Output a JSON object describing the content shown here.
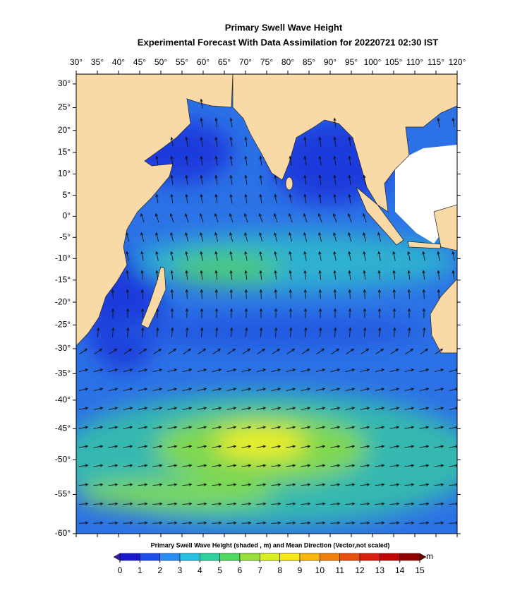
{
  "title": "Primary Swell Wave Height",
  "subtitle": "Experimental Forecast With  Data Assimilation for 20220721 02:30 IST",
  "map": {
    "projection": "mercator",
    "xlim": [
      30,
      120
    ],
    "ylim": [
      -60,
      32
    ],
    "xticks": [
      {
        "value": 30,
        "label": "30°"
      },
      {
        "value": 35,
        "label": "35°"
      },
      {
        "value": 40,
        "label": "40°"
      },
      {
        "value": 45,
        "label": "45°"
      },
      {
        "value": 50,
        "label": "50°"
      },
      {
        "value": 55,
        "label": "55°"
      },
      {
        "value": 60,
        "label": "60°"
      },
      {
        "value": 65,
        "label": "65°"
      },
      {
        "value": 70,
        "label": "70°"
      },
      {
        "value": 75,
        "label": "75°"
      },
      {
        "value": 80,
        "label": "80°"
      },
      {
        "value": 85,
        "label": "85°"
      },
      {
        "value": 90,
        "label": "90°"
      },
      {
        "value": 95,
        "label": "95°"
      },
      {
        "value": 100,
        "label": "100°"
      },
      {
        "value": 105,
        "label": "105°"
      },
      {
        "value": 110,
        "label": "110°"
      },
      {
        "value": 115,
        "label": "115°"
      },
      {
        "value": 120,
        "label": "120°"
      }
    ],
    "yticks": [
      {
        "value": 30,
        "label": "30°"
      },
      {
        "value": 25,
        "label": "25°"
      },
      {
        "value": 20,
        "label": "20°"
      },
      {
        "value": 15,
        "label": "15°"
      },
      {
        "value": 10,
        "label": "10°"
      },
      {
        "value": 5,
        "label": "5°"
      },
      {
        "value": 0,
        "label": "0°"
      },
      {
        "value": -5,
        "label": "-5°"
      },
      {
        "value": -10,
        "label": "-10°"
      },
      {
        "value": -15,
        "label": "-15°"
      },
      {
        "value": -20,
        "label": "-20°"
      },
      {
        "value": -25,
        "label": "-25°"
      },
      {
        "value": -30,
        "label": "-30°"
      },
      {
        "value": -35,
        "label": "-35°"
      },
      {
        "value": -40,
        "label": "-40°"
      },
      {
        "value": -45,
        "label": "-45°"
      },
      {
        "value": -50,
        "label": "-50°"
      },
      {
        "value": -55,
        "label": "-55°"
      },
      {
        "value": -60,
        "label": "-60°"
      }
    ]
  },
  "colorbar": {
    "label": "Primary Swell Wave Height (shaded , m) and Mean Direction (Vector,not scaled)",
    "unit": "m",
    "lim": [
      0,
      15
    ],
    "ticks": [
      0,
      1,
      2,
      3,
      4,
      5,
      6,
      7,
      8,
      9,
      10,
      11,
      12,
      13,
      14,
      15
    ],
    "colors": [
      "#1a1acd",
      "#1f4fe8",
      "#2a8cf0",
      "#28c0e0",
      "#30d0a0",
      "#50d860",
      "#98e040",
      "#d8f020",
      "#f8e818",
      "#f8b810",
      "#f08010",
      "#e85010",
      "#d82010",
      "#c00808",
      "#900000"
    ]
  }
}
